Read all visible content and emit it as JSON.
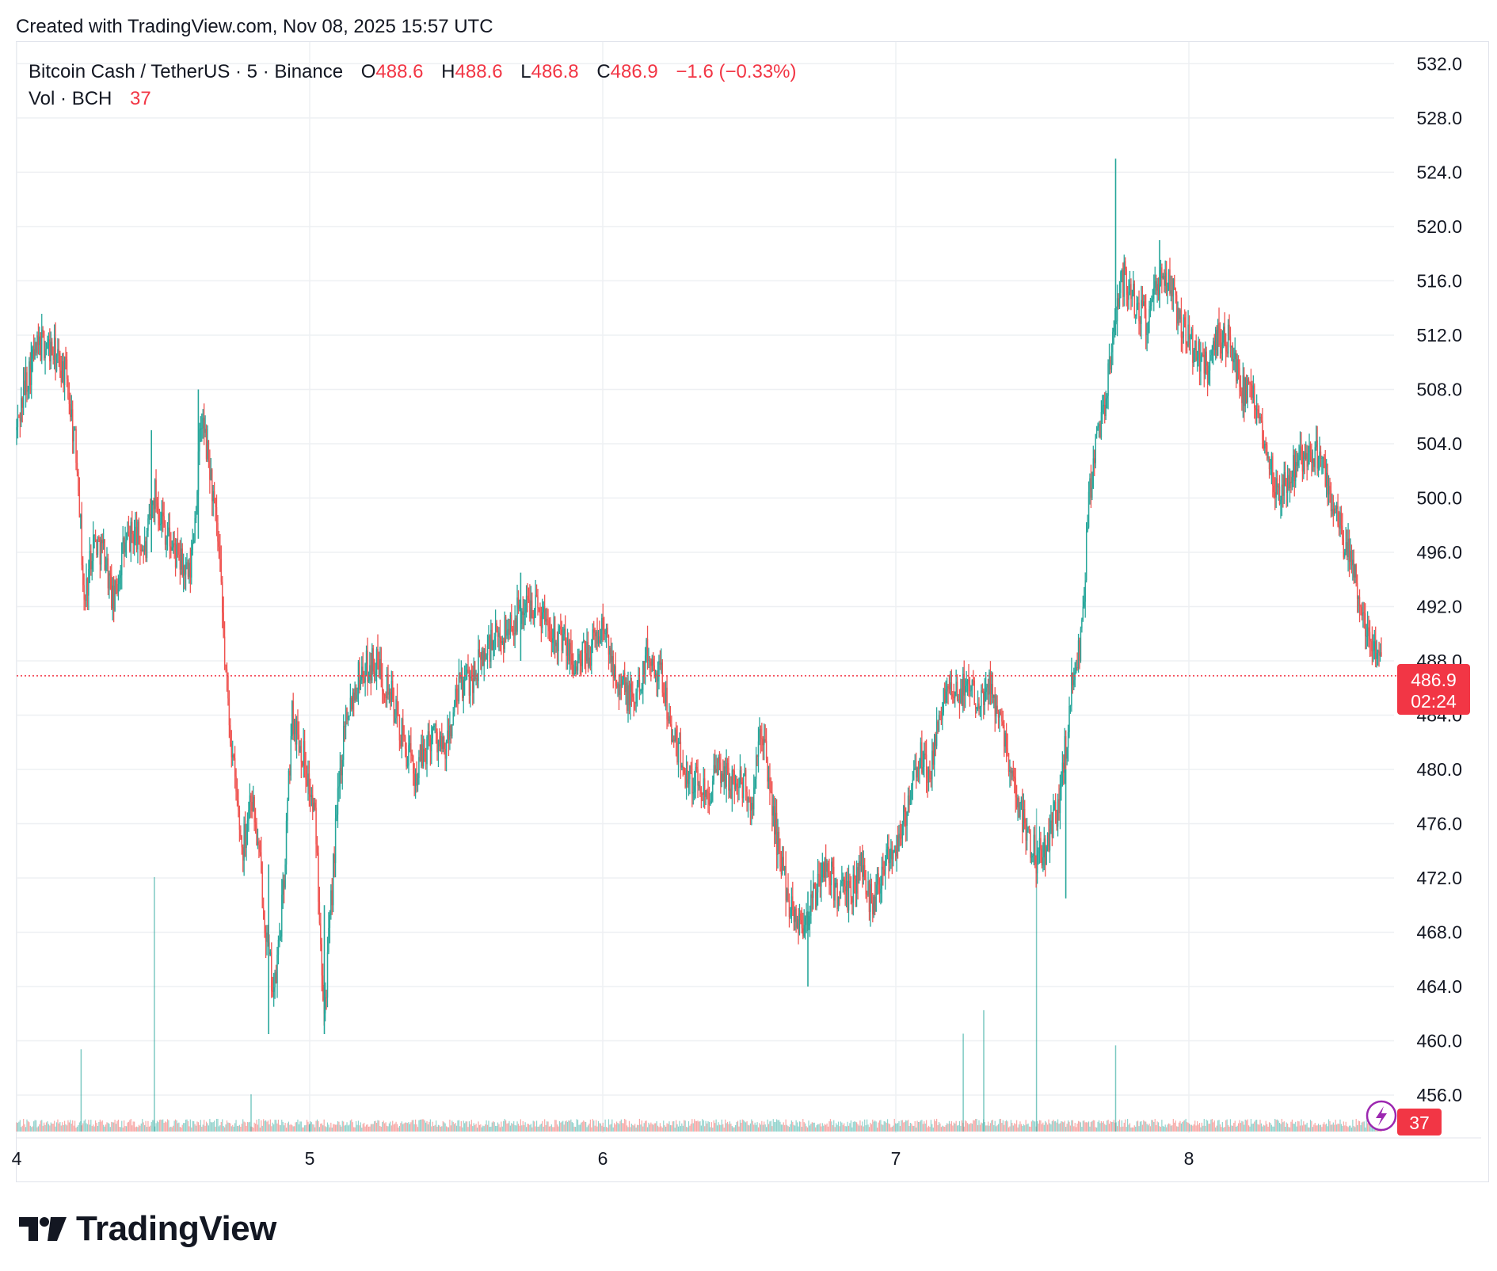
{
  "header": {
    "created": "Created with TradingView.com, Nov 08, 2025 15:57 UTC"
  },
  "legend": {
    "symbol": "Bitcoin Cash / TetherUS · 5 · Binance",
    "open_label": "O",
    "open": "488.6",
    "high_label": "H",
    "high": "488.6",
    "low_label": "L",
    "low": "486.8",
    "close_label": "C",
    "close": "486.9",
    "change": "−1.6 (−0.33%)",
    "volume_label": "Vol · BCH",
    "volume": "37"
  },
  "price_badge": {
    "price": "486.9",
    "countdown": "02:24"
  },
  "volume_badge": "37",
  "logo": {
    "text": "TradingView"
  },
  "colors": {
    "up": "#26a69a",
    "down": "#ef5350",
    "badge": "#f23645",
    "grid": "#eef0f3",
    "border": "#e0e3eb",
    "text": "#131722",
    "flash_icon": "#9c27b0"
  },
  "chart_data": {
    "type": "candlestick",
    "symbol": "Bitcoin Cash / TetherUS",
    "interval": "5",
    "exchange": "Binance",
    "y_ticks": [
      "532.0",
      "528.0",
      "524.0",
      "520.0",
      "516.0",
      "512.0",
      "508.0",
      "504.0",
      "500.0",
      "496.0",
      "492.0",
      "488.0",
      "484.0",
      "480.0",
      "476.0",
      "472.0",
      "468.0",
      "464.0",
      "460.0",
      "456.0"
    ],
    "ylim": [
      453.2,
      533.6
    ],
    "x_ticks": [
      "4",
      "5",
      "6",
      "7",
      "8"
    ],
    "x_tick_days": [
      4,
      5,
      6,
      7,
      8
    ],
    "x_range_days": [
      4.0,
      8.66
    ],
    "last_price": 486.9,
    "grid": true,
    "price_path": [
      {
        "d": 4.0,
        "p": 505.0
      },
      {
        "d": 4.03,
        "p": 508.5
      },
      {
        "d": 4.06,
        "p": 510.5
      },
      {
        "d": 4.09,
        "p": 511.5
      },
      {
        "d": 4.13,
        "p": 510.5
      },
      {
        "d": 4.17,
        "p": 509.0
      },
      {
        "d": 4.21,
        "p": 502.0
      },
      {
        "d": 4.23,
        "p": 492.0
      },
      {
        "d": 4.26,
        "p": 497.0
      },
      {
        "d": 4.3,
        "p": 496.0
      },
      {
        "d": 4.33,
        "p": 492.0
      },
      {
        "d": 4.36,
        "p": 496.0
      },
      {
        "d": 4.4,
        "p": 497.5
      },
      {
        "d": 4.44,
        "p": 496.0
      },
      {
        "d": 4.47,
        "p": 500.5
      },
      {
        "d": 4.51,
        "p": 497.5
      },
      {
        "d": 4.55,
        "p": 495.5
      },
      {
        "d": 4.59,
        "p": 494.0
      },
      {
        "d": 4.61,
        "p": 499.0
      },
      {
        "d": 4.63,
        "p": 506.0
      },
      {
        "d": 4.66,
        "p": 502.0
      },
      {
        "d": 4.69,
        "p": 496.0
      },
      {
        "d": 4.71,
        "p": 488.0
      },
      {
        "d": 4.74,
        "p": 480.0
      },
      {
        "d": 4.77,
        "p": 474.0
      },
      {
        "d": 4.8,
        "p": 478.5
      },
      {
        "d": 4.83,
        "p": 473.0
      },
      {
        "d": 4.86,
        "p": 466.0
      },
      {
        "d": 4.88,
        "p": 463.5
      },
      {
        "d": 4.91,
        "p": 471.0
      },
      {
        "d": 4.94,
        "p": 484.0
      },
      {
        "d": 4.98,
        "p": 481.0
      },
      {
        "d": 5.02,
        "p": 476.0
      },
      {
        "d": 5.05,
        "p": 462.0
      },
      {
        "d": 5.09,
        "p": 476.0
      },
      {
        "d": 5.12,
        "p": 484.0
      },
      {
        "d": 5.17,
        "p": 487.0
      },
      {
        "d": 5.22,
        "p": 488.0
      },
      {
        "d": 5.27,
        "p": 486.0
      },
      {
        "d": 5.32,
        "p": 482.0
      },
      {
        "d": 5.36,
        "p": 479.5
      },
      {
        "d": 5.42,
        "p": 483.0
      },
      {
        "d": 5.46,
        "p": 481.0
      },
      {
        "d": 5.51,
        "p": 486.0
      },
      {
        "d": 5.56,
        "p": 487.0
      },
      {
        "d": 5.61,
        "p": 489.0
      },
      {
        "d": 5.66,
        "p": 490.0
      },
      {
        "d": 5.71,
        "p": 491.5
      },
      {
        "d": 5.76,
        "p": 492.5
      },
      {
        "d": 5.81,
        "p": 491.0
      },
      {
        "d": 5.86,
        "p": 489.5
      },
      {
        "d": 5.91,
        "p": 487.5
      },
      {
        "d": 5.96,
        "p": 489.0
      },
      {
        "d": 6.0,
        "p": 490.5
      },
      {
        "d": 6.04,
        "p": 487.5
      },
      {
        "d": 6.08,
        "p": 485.5
      },
      {
        "d": 6.11,
        "p": 485.0
      },
      {
        "d": 6.15,
        "p": 488.5
      },
      {
        "d": 6.19,
        "p": 487.5
      },
      {
        "d": 6.21,
        "p": 486.0
      },
      {
        "d": 6.24,
        "p": 482.0
      },
      {
        "d": 6.28,
        "p": 480.0
      },
      {
        "d": 6.32,
        "p": 479.0
      },
      {
        "d": 6.36,
        "p": 478.5
      },
      {
        "d": 6.4,
        "p": 480.0
      },
      {
        "d": 6.44,
        "p": 479.0
      },
      {
        "d": 6.48,
        "p": 479.0
      },
      {
        "d": 6.51,
        "p": 477.0
      },
      {
        "d": 6.54,
        "p": 483.5
      },
      {
        "d": 6.56,
        "p": 480.0
      },
      {
        "d": 6.6,
        "p": 474.0
      },
      {
        "d": 6.64,
        "p": 470.0
      },
      {
        "d": 6.68,
        "p": 468.5
      },
      {
        "d": 6.72,
        "p": 470.5
      },
      {
        "d": 6.76,
        "p": 473.0
      },
      {
        "d": 6.8,
        "p": 471.0
      },
      {
        "d": 6.84,
        "p": 470.5
      },
      {
        "d": 6.88,
        "p": 473.0
      },
      {
        "d": 6.92,
        "p": 470.0
      },
      {
        "d": 6.96,
        "p": 473.5
      },
      {
        "d": 7.0,
        "p": 474.5
      },
      {
        "d": 7.04,
        "p": 477.0
      },
      {
        "d": 7.08,
        "p": 481.0
      },
      {
        "d": 7.12,
        "p": 479.5
      },
      {
        "d": 7.16,
        "p": 485.5
      },
      {
        "d": 7.2,
        "p": 485.0
      },
      {
        "d": 7.24,
        "p": 486.5
      },
      {
        "d": 7.28,
        "p": 485.5
      },
      {
        "d": 7.32,
        "p": 486.0
      },
      {
        "d": 7.36,
        "p": 484.0
      },
      {
        "d": 7.4,
        "p": 479.0
      },
      {
        "d": 7.44,
        "p": 476.0
      },
      {
        "d": 7.48,
        "p": 473.5
      },
      {
        "d": 7.52,
        "p": 474.5
      },
      {
        "d": 7.56,
        "p": 478.0
      },
      {
        "d": 7.6,
        "p": 486.0
      },
      {
        "d": 7.63,
        "p": 489.0
      },
      {
        "d": 7.66,
        "p": 500.0
      },
      {
        "d": 7.69,
        "p": 505.0
      },
      {
        "d": 7.72,
        "p": 508.0
      },
      {
        "d": 7.75,
        "p": 514.0
      },
      {
        "d": 7.78,
        "p": 516.5
      },
      {
        "d": 7.82,
        "p": 514.0
      },
      {
        "d": 7.86,
        "p": 513.0
      },
      {
        "d": 7.9,
        "p": 516.0
      },
      {
        "d": 7.94,
        "p": 515.5
      },
      {
        "d": 7.98,
        "p": 512.5
      },
      {
        "d": 8.02,
        "p": 511.0
      },
      {
        "d": 8.06,
        "p": 509.5
      },
      {
        "d": 8.1,
        "p": 512.0
      },
      {
        "d": 8.14,
        "p": 511.5
      },
      {
        "d": 8.18,
        "p": 508.0
      },
      {
        "d": 8.22,
        "p": 507.0
      },
      {
        "d": 8.26,
        "p": 504.5
      },
      {
        "d": 8.3,
        "p": 500.5
      },
      {
        "d": 8.34,
        "p": 501.5
      },
      {
        "d": 8.38,
        "p": 503.0
      },
      {
        "d": 8.42,
        "p": 503.5
      },
      {
        "d": 8.46,
        "p": 502.0
      },
      {
        "d": 8.5,
        "p": 499.0
      },
      {
        "d": 8.54,
        "p": 496.0
      },
      {
        "d": 8.57,
        "p": 494.0
      },
      {
        "d": 8.6,
        "p": 490.0
      },
      {
        "d": 8.63,
        "p": 489.5
      },
      {
        "d": 8.66,
        "p": 486.9
      }
    ],
    "wick_extremes": [
      {
        "d": 4.05,
        "high": 511.5,
        "low": 509.5
      },
      {
        "d": 4.46,
        "high": 505.0,
        "low": 496.0
      },
      {
        "d": 4.62,
        "high": 508.0,
        "low": 497.0
      },
      {
        "d": 4.86,
        "high": 473.0,
        "low": 460.5
      },
      {
        "d": 5.05,
        "high": 470.0,
        "low": 460.5
      },
      {
        "d": 5.72,
        "high": 494.5,
        "low": 488.0
      },
      {
        "d": 6.7,
        "high": 471.0,
        "low": 464.0
      },
      {
        "d": 7.58,
        "high": 480.0,
        "low": 470.5
      },
      {
        "d": 7.75,
        "high": 525.0,
        "low": 512.0
      },
      {
        "d": 7.9,
        "high": 519.0,
        "low": 514.0
      }
    ],
    "volume_spikes": [
      {
        "d": 4.22,
        "vol": 420
      },
      {
        "d": 4.47,
        "vol": 1300
      },
      {
        "d": 4.8,
        "vol": 190
      },
      {
        "d": 5.0,
        "vol": 40
      },
      {
        "d": 7.23,
        "vol": 500
      },
      {
        "d": 7.3,
        "vol": 620
      },
      {
        "d": 7.48,
        "vol": 1650
      },
      {
        "d": 7.75,
        "vol": 440
      }
    ],
    "volume_scale_max": 1700
  }
}
